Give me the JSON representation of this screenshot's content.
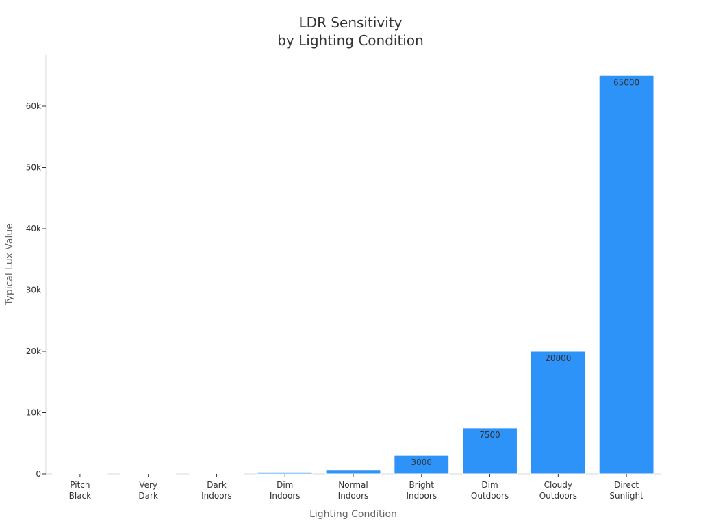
{
  "chart_data": {
    "type": "bar",
    "title": [
      "LDR Sensitivity",
      "by Lighting Condition"
    ],
    "xlabel": "Lighting Condition",
    "ylabel": "Typical Lux Value",
    "categories": [
      [
        "Pitch",
        "Black"
      ],
      [
        "Very",
        "Dark"
      ],
      [
        "Dark",
        "Indoors"
      ],
      [
        "Dim",
        "Indoors"
      ],
      [
        "Normal",
        "Indoors"
      ],
      [
        "Bright",
        "Indoors"
      ],
      [
        "Dim",
        "Outdoors"
      ],
      [
        "Cloudy",
        "Outdoors"
      ],
      [
        "Direct",
        "Sunlight"
      ]
    ],
    "values": [
      1,
      10,
      100,
      300,
      700,
      3000,
      7500,
      20000,
      65000
    ],
    "data_labels": [
      "",
      "",
      "",
      "",
      "",
      "3000",
      "7500",
      "20000",
      "65000"
    ],
    "ylim": [
      0,
      68500
    ],
    "yticks": [
      0,
      10000,
      20000,
      30000,
      40000,
      50000,
      60000
    ],
    "ytick_labels": [
      "0",
      "10k",
      "20k",
      "30k",
      "40k",
      "50k",
      "60k"
    ],
    "grid": false,
    "bar_color": "#2e93f8",
    "bar_edge_color": "#ffffff"
  }
}
